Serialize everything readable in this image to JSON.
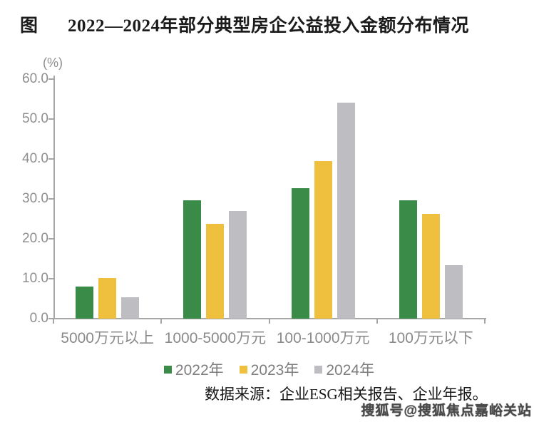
{
  "title": {
    "prefix": "图",
    "text": "2022—2024年部分典型房企公益投入金额分布情况"
  },
  "chart_data": {
    "type": "bar",
    "title": "2022—2024年部分典型房企公益投入金额分布情况",
    "unit_label": "(%)",
    "xlabel": "",
    "ylabel": "(%)",
    "ylim": [
      0,
      60
    ],
    "yticks": [
      0,
      10,
      20,
      30,
      40,
      50,
      60
    ],
    "ytick_labels": [
      "0.0",
      "10.0",
      "20.0",
      "30.0",
      "40.0",
      "50.0",
      "60.0"
    ],
    "grid": false,
    "legend_position": "bottom",
    "categories": [
      "5000万元以上",
      "1000-5000万元",
      "100-1000万元",
      "100万元以下"
    ],
    "series": [
      {
        "name": "2022年",
        "color": "#3a8a48",
        "values": [
          8.0,
          29.6,
          32.6,
          29.6
        ]
      },
      {
        "name": "2023年",
        "color": "#efbf3e",
        "values": [
          10.2,
          23.7,
          39.5,
          26.3
        ]
      },
      {
        "name": "2024年",
        "color": "#bebec2",
        "values": [
          5.4,
          27.0,
          54.1,
          13.4
        ]
      }
    ]
  },
  "source": "数据来源：企业ESG相关报告、企业年报。",
  "watermark": "搜狐号@搜狐焦点嘉峪关站",
  "colors": {
    "axis": "#a6a6a6",
    "tick_text": "#8e8e8e",
    "title_text": "#1b1b1b"
  }
}
